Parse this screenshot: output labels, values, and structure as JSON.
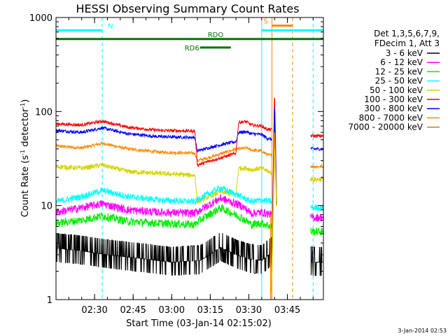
{
  "chart_data": {
    "type": "line",
    "title": "HESSI Observing Summary Count Rates",
    "xlabel": "Start Time (03-Jan-14 02:15:02)",
    "ylabel_main": "Count Rate (s",
    "ylabel_exp1": "-1",
    "ylabel_mid": " detector",
    "ylabel_exp2": "-1",
    "ylabel_end": ")",
    "yscale": "log",
    "ylim": [
      1,
      1000
    ],
    "xlim_minutes": [
      0,
      104
    ],
    "x_ticks": [
      {
        "label": "02:30",
        "min": 15
      },
      {
        "label": "02:45",
        "min": 30
      },
      {
        "label": "03:00",
        "min": 45
      },
      {
        "label": "03:15",
        "min": 60
      },
      {
        "label": "03:30",
        "min": 75
      },
      {
        "label": "03:45",
        "min": 90
      }
    ],
    "y_ticks": [
      {
        "label": "1",
        "value": 1
      },
      {
        "label": "10",
        "value": 10
      },
      {
        "label": "100",
        "value": 100
      },
      {
        "label": "1000",
        "value": 1000
      }
    ],
    "legend_header": [
      "Det 1,3,5,6,7,9,",
      "FDecim 1, Att 3"
    ],
    "series": [
      {
        "name": "3 - 6 keV",
        "color": "#000000",
        "base": 2.6,
        "noise": 0.45,
        "points": [
          [
            0,
            3.5
          ],
          [
            10,
            3.3
          ],
          [
            20,
            3.0
          ],
          [
            30,
            2.8
          ],
          [
            45,
            2.5
          ],
          [
            56,
            2.6
          ],
          [
            58,
            2.8
          ],
          [
            64,
            3.6
          ],
          [
            70,
            3.0
          ],
          [
            75,
            2.7
          ],
          [
            80,
            2.6
          ],
          [
            84,
            3.2
          ],
          [
            100,
            2.5
          ],
          [
            102,
            2.5
          ]
        ]
      },
      {
        "name": "6 - 12 keV",
        "color": "#ff00ff",
        "noise": 0.1,
        "points": [
          [
            0,
            8.5
          ],
          [
            10,
            9.5
          ],
          [
            18,
            10.5
          ],
          [
            28,
            9.0
          ],
          [
            40,
            8.5
          ],
          [
            54,
            8.3
          ],
          [
            56,
            9.0
          ],
          [
            64,
            12.0
          ],
          [
            72,
            10.0
          ],
          [
            76,
            8.3
          ],
          [
            80,
            8.5
          ],
          [
            84,
            8.0
          ],
          [
            100,
            7.5
          ],
          [
            102,
            7.5
          ]
        ]
      },
      {
        "name": "12 - 25 keV",
        "color": "#00ee00",
        "noise": 0.1,
        "points": [
          [
            0,
            6.5
          ],
          [
            10,
            7.0
          ],
          [
            18,
            7.8
          ],
          [
            28,
            6.8
          ],
          [
            40,
            6.5
          ],
          [
            54,
            6.3
          ],
          [
            56,
            7.0
          ],
          [
            64,
            9.5
          ],
          [
            72,
            7.5
          ],
          [
            76,
            6.3
          ],
          [
            80,
            6.5
          ],
          [
            84,
            6.0
          ],
          [
            100,
            5.3
          ],
          [
            102,
            5.3
          ]
        ]
      },
      {
        "name": "25 - 50 keV",
        "color": "#00ffff",
        "noise": 0.08,
        "points": [
          [
            0,
            11
          ],
          [
            10,
            12.5
          ],
          [
            18,
            14.5
          ],
          [
            28,
            12.5
          ],
          [
            40,
            11.5
          ],
          [
            54,
            11
          ],
          [
            56,
            12
          ],
          [
            64,
            15.5
          ],
          [
            72,
            12.5
          ],
          [
            76,
            11
          ],
          [
            80,
            11.5
          ],
          [
            84,
            11
          ],
          [
            100,
            9.5
          ],
          [
            102,
            9.5
          ]
        ]
      },
      {
        "name": "50 - 100 keV",
        "color": "#d4d400",
        "noise": 0.06,
        "points": [
          [
            0,
            26
          ],
          [
            10,
            25
          ],
          [
            18,
            27
          ],
          [
            28,
            23
          ],
          [
            40,
            22
          ],
          [
            54,
            21
          ],
          [
            55,
            11
          ],
          [
            64,
            14
          ],
          [
            70,
            13
          ],
          [
            71,
            25
          ],
          [
            74,
            25
          ],
          [
            76,
            24
          ],
          [
            80,
            25
          ],
          [
            84,
            22
          ],
          [
            100,
            19
          ],
          [
            102,
            19
          ]
        ]
      },
      {
        "name": "100 - 300 keV",
        "color": "#ff0000",
        "noise": 0.04,
        "points": [
          [
            0,
            74
          ],
          [
            10,
            72
          ],
          [
            18,
            79
          ],
          [
            28,
            68
          ],
          [
            40,
            63
          ],
          [
            54,
            62
          ],
          [
            55,
            27
          ],
          [
            62,
            31
          ],
          [
            70,
            36
          ],
          [
            71,
            77
          ],
          [
            74,
            78
          ],
          [
            76,
            72
          ],
          [
            80,
            70
          ],
          [
            82,
            65
          ],
          [
            100,
            55
          ],
          [
            102,
            55
          ]
        ]
      },
      {
        "name": "300 - 800 keV",
        "color": "#0000ff",
        "noise": 0.04,
        "points": [
          [
            0,
            63
          ],
          [
            10,
            60
          ],
          [
            18,
            67
          ],
          [
            28,
            58
          ],
          [
            40,
            54
          ],
          [
            54,
            53
          ],
          [
            55,
            38
          ],
          [
            62,
            43
          ],
          [
            70,
            48
          ],
          [
            71,
            60
          ],
          [
            74,
            61
          ],
          [
            76,
            58
          ],
          [
            80,
            57
          ],
          [
            82,
            52
          ],
          [
            100,
            40
          ],
          [
            102,
            40
          ]
        ]
      },
      {
        "name": "800 - 7000 keV",
        "color": "#ff8800",
        "noise": 0.04,
        "points": [
          [
            0,
            43
          ],
          [
            10,
            41
          ],
          [
            18,
            46
          ],
          [
            28,
            40
          ],
          [
            40,
            37
          ],
          [
            54,
            36
          ],
          [
            55,
            30
          ],
          [
            62,
            34
          ],
          [
            70,
            40
          ],
          [
            71,
            40
          ],
          [
            74,
            41
          ],
          [
            76,
            39
          ],
          [
            80,
            38
          ],
          [
            82,
            35
          ],
          [
            100,
            26
          ],
          [
            102,
            26
          ]
        ]
      },
      {
        "name": "7000 - 20000 keV",
        "color": "#b8860b",
        "noise": 0.0,
        "points": []
      }
    ],
    "flare_spike": {
      "min": 85,
      "peak_red": 140,
      "peak_blue": 110
    },
    "status_bars": [
      {
        "label": "N",
        "color": "#00ffff",
        "level": 730,
        "segments": [
          [
            0,
            18
          ],
          [
            80,
            104
          ]
        ]
      },
      {
        "label": "RDO",
        "color": "#007700",
        "level": 590,
        "segments": [
          [
            0,
            104
          ]
        ]
      },
      {
        "label": "RD6",
        "color": "#007700",
        "level": 480,
        "segments": [
          [
            56,
            68
          ]
        ]
      },
      {
        "label": "S",
        "color": "#ff8800",
        "level": 820,
        "segments": [
          [
            84,
            92
          ]
        ]
      }
    ],
    "vlines": [
      {
        "min": 18,
        "color": "#00ffff",
        "style": "dashed"
      },
      {
        "min": 80,
        "color": "#00ffff",
        "style": "solid"
      },
      {
        "min": 84,
        "color": "#ff8800",
        "style": "solid"
      },
      {
        "min": 92,
        "color": "#ff8800",
        "style": "dashed"
      },
      {
        "min": 100,
        "color": "#00ffff",
        "style": "dashed"
      }
    ]
  },
  "footer": {
    "date_stamp": "3-Jan-2014 02:53"
  }
}
